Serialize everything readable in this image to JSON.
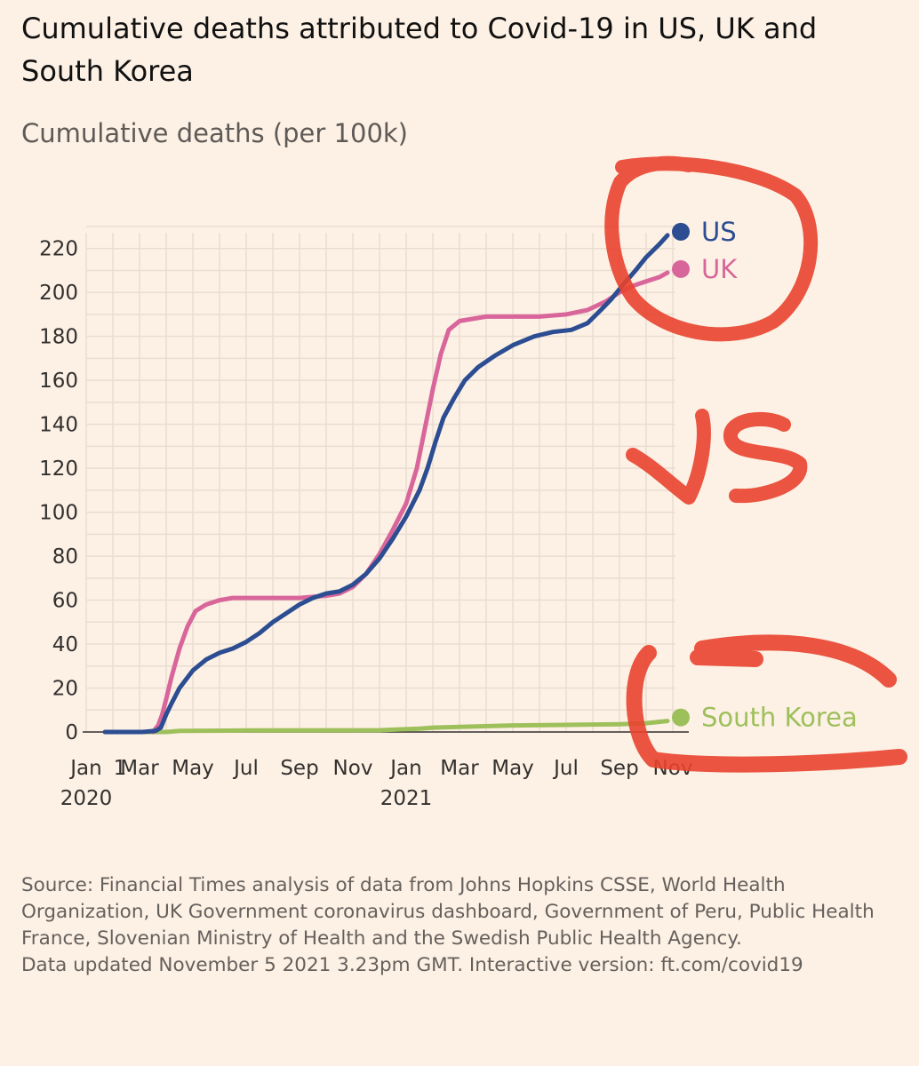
{
  "title": "Cumulative deaths attributed to Covid-19 in US, UK and South Korea",
  "subtitle": "Cumulative deaths (per 100k)",
  "chart_data": {
    "type": "line",
    "title": "Cumulative deaths attributed to Covid-19 in US, UK and South Korea",
    "ylabel": "Cumulative deaths (per 100k)",
    "xlabel": "",
    "ylim": [
      0,
      230
    ],
    "xlim": [
      0,
      22.2
    ],
    "y_ticks": [
      0,
      20,
      40,
      60,
      80,
      100,
      120,
      140,
      160,
      180,
      200,
      220
    ],
    "x_ticks": [
      {
        "label": "Jan",
        "year": "2020",
        "month": 0
      },
      {
        "label": "1",
        "month": 1
      },
      {
        "label": "Mar",
        "month": 2
      },
      {
        "label": "May",
        "month": 4
      },
      {
        "label": "Jul",
        "month": 6
      },
      {
        "label": "Sep",
        "month": 8
      },
      {
        "label": "Nov",
        "month": 10
      },
      {
        "label": "Jan",
        "year": "2021",
        "month": 12
      },
      {
        "label": "Mar",
        "month": 14
      },
      {
        "label": "May",
        "month": 16
      },
      {
        "label": "Jul",
        "month": 18
      },
      {
        "label": "Sep",
        "month": 20
      },
      {
        "label": "Nov",
        "month": 22
      }
    ],
    "series": [
      {
        "name": "US",
        "color": "#2c4d92",
        "points": [
          [
            0.7,
            0
          ],
          [
            1.1,
            0
          ],
          [
            2.1,
            0
          ],
          [
            2.6,
            0.5
          ],
          [
            2.8,
            2
          ],
          [
            3.0,
            8
          ],
          [
            3.2,
            13
          ],
          [
            3.5,
            20
          ],
          [
            4.0,
            28
          ],
          [
            4.5,
            33
          ],
          [
            5.0,
            36
          ],
          [
            5.5,
            38
          ],
          [
            6.0,
            41
          ],
          [
            6.5,
            45
          ],
          [
            7.0,
            50
          ],
          [
            7.5,
            54
          ],
          [
            8.0,
            58
          ],
          [
            8.5,
            61
          ],
          [
            9.0,
            63
          ],
          [
            9.5,
            64
          ],
          [
            10.0,
            67
          ],
          [
            10.5,
            72
          ],
          [
            11.0,
            79
          ],
          [
            11.5,
            88
          ],
          [
            12.0,
            98
          ],
          [
            12.5,
            110
          ],
          [
            12.8,
            120
          ],
          [
            13.1,
            132
          ],
          [
            13.4,
            143
          ],
          [
            13.8,
            152
          ],
          [
            14.2,
            160
          ],
          [
            14.7,
            166
          ],
          [
            15.3,
            171
          ],
          [
            16.0,
            176
          ],
          [
            16.8,
            180
          ],
          [
            17.5,
            182
          ],
          [
            18.2,
            183
          ],
          [
            18.8,
            186
          ],
          [
            19.3,
            192
          ],
          [
            19.7,
            197
          ],
          [
            20.1,
            203
          ],
          [
            20.6,
            210
          ],
          [
            21.0,
            216
          ],
          [
            21.5,
            222
          ],
          [
            21.8,
            226
          ]
        ]
      },
      {
        "name": "UK",
        "color": "#d9669a",
        "points": [
          [
            2.5,
            0
          ],
          [
            2.7,
            3
          ],
          [
            2.85,
            8
          ],
          [
            3.0,
            15
          ],
          [
            3.2,
            25
          ],
          [
            3.5,
            38
          ],
          [
            3.8,
            48
          ],
          [
            4.1,
            55
          ],
          [
            4.5,
            58
          ],
          [
            5.0,
            60
          ],
          [
            5.5,
            61
          ],
          [
            6.0,
            61
          ],
          [
            7.0,
            61
          ],
          [
            8.0,
            61
          ],
          [
            9.0,
            62
          ],
          [
            9.5,
            63
          ],
          [
            10.0,
            66
          ],
          [
            10.5,
            72
          ],
          [
            11.0,
            81
          ],
          [
            11.5,
            92
          ],
          [
            12.0,
            104
          ],
          [
            12.4,
            120
          ],
          [
            12.7,
            138
          ],
          [
            13.0,
            156
          ],
          [
            13.3,
            172
          ],
          [
            13.6,
            183
          ],
          [
            14.0,
            187
          ],
          [
            14.5,
            188
          ],
          [
            15.0,
            189
          ],
          [
            16.0,
            189
          ],
          [
            17.0,
            189
          ],
          [
            18.0,
            190
          ],
          [
            18.8,
            192
          ],
          [
            19.5,
            196
          ],
          [
            20.0,
            200
          ],
          [
            20.5,
            203
          ],
          [
            21.0,
            205
          ],
          [
            21.5,
            207
          ],
          [
            21.8,
            209
          ]
        ]
      },
      {
        "name": "South Korea",
        "color": "#9dc05b",
        "points": [
          [
            1.1,
            0
          ],
          [
            3.0,
            0
          ],
          [
            3.5,
            0.5
          ],
          [
            6.0,
            0.7
          ],
          [
            11.0,
            0.8
          ],
          [
            12.5,
            1.5
          ],
          [
            13.0,
            2
          ],
          [
            16.0,
            3
          ],
          [
            20.0,
            3.5
          ],
          [
            21.0,
            4
          ],
          [
            21.8,
            5
          ]
        ]
      }
    ],
    "annotations": [
      "VS"
    ]
  },
  "footer": {
    "source": "Source: Financial Times analysis of data from Johns Hopkins CSSE, World Health Organization, UK Government coronavirus dashboard, Government of Peru, Public Health France, Slovenian Ministry of Health and the Swedish Public Health Agency.",
    "updated": "Data updated November 5 2021 3.23pm GMT. Interactive version: ft.com/covid19"
  },
  "colors": {
    "background": "#fdf1e5",
    "grid": "#e9ddd1",
    "annotation_red": "#e8432e"
  }
}
